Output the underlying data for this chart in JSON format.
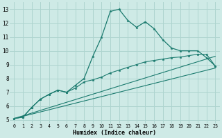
{
  "xlabel": "Humidex (Indice chaleur)",
  "xlim": [
    -0.5,
    23.5
  ],
  "ylim": [
    4.75,
    13.5
  ],
  "xticks": [
    0,
    1,
    2,
    3,
    4,
    5,
    6,
    7,
    8,
    9,
    10,
    11,
    12,
    13,
    14,
    15,
    16,
    17,
    18,
    19,
    20,
    21,
    22,
    23
  ],
  "yticks": [
    5,
    6,
    7,
    8,
    9,
    10,
    11,
    12,
    13
  ],
  "background_color": "#ceeae6",
  "grid_color": "#aed4cf",
  "line_color": "#1a7a6e",
  "line1_x": [
    0,
    1,
    2,
    3,
    4,
    5,
    6,
    7,
    8,
    9,
    10,
    11,
    12,
    13,
    14,
    15,
    16,
    17,
    18,
    19,
    20,
    21,
    22,
    23
  ],
  "line1_y": [
    5.1,
    5.2,
    5.9,
    6.5,
    6.85,
    7.15,
    7.0,
    7.5,
    8.0,
    9.6,
    11.0,
    12.85,
    13.0,
    12.2,
    11.7,
    12.1,
    11.6,
    10.8,
    10.2,
    10.0,
    10.0,
    10.0,
    9.5,
    8.9
  ],
  "line2_x": [
    0,
    1,
    2,
    3,
    4,
    5,
    6,
    7,
    8,
    9,
    10,
    11,
    12,
    13,
    14,
    15,
    16,
    17,
    18,
    19,
    20,
    21,
    22,
    23
  ],
  "line2_y": [
    5.1,
    5.2,
    5.9,
    6.5,
    6.85,
    7.15,
    7.0,
    7.3,
    7.75,
    7.9,
    8.1,
    8.4,
    8.6,
    8.8,
    9.0,
    9.2,
    9.3,
    9.4,
    9.5,
    9.55,
    9.65,
    9.75,
    9.75,
    8.9
  ],
  "line3_x": [
    0,
    23
  ],
  "line3_y": [
    5.1,
    9.6
  ],
  "line4_x": [
    0,
    23
  ],
  "line4_y": [
    5.1,
    8.75
  ]
}
